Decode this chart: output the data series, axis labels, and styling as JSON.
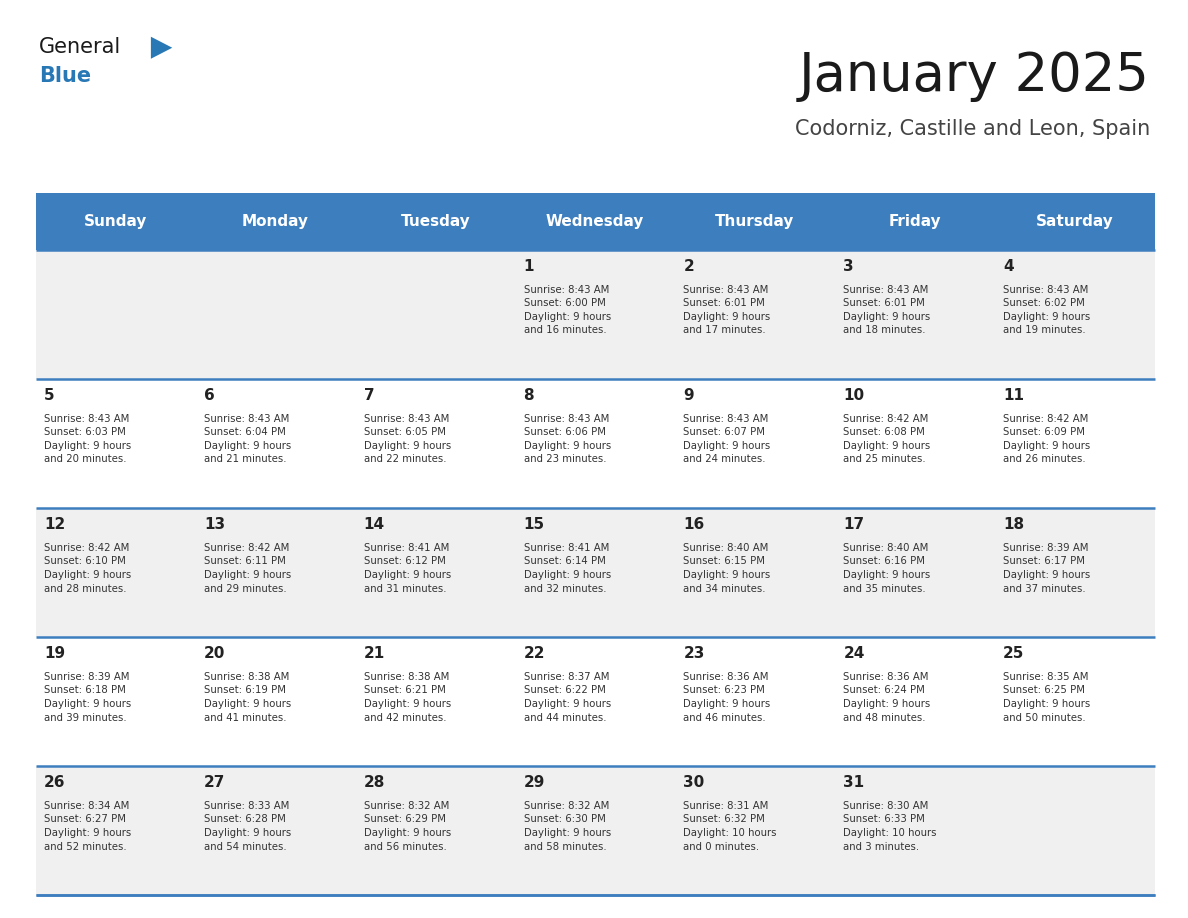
{
  "title": "January 2025",
  "subtitle": "Codorniz, Castille and Leon, Spain",
  "days_of_week": [
    "Sunday",
    "Monday",
    "Tuesday",
    "Wednesday",
    "Thursday",
    "Friday",
    "Saturday"
  ],
  "header_bg": "#3d7ebf",
  "header_text_color": "#ffffff",
  "row_bg_odd": "#f0f0f0",
  "row_bg_even": "#ffffff",
  "cell_text_color": "#333333",
  "day_num_color": "#222222",
  "border_color": "#3d7ebf",
  "title_color": "#1a1a1a",
  "subtitle_color": "#444444",
  "logo_general_color": "#1a1a1a",
  "logo_blue_color": "#2878b5",
  "calendar": [
    [
      {
        "day": null,
        "info": null
      },
      {
        "day": null,
        "info": null
      },
      {
        "day": null,
        "info": null
      },
      {
        "day": 1,
        "info": "Sunrise: 8:43 AM\nSunset: 6:00 PM\nDaylight: 9 hours\nand 16 minutes."
      },
      {
        "day": 2,
        "info": "Sunrise: 8:43 AM\nSunset: 6:01 PM\nDaylight: 9 hours\nand 17 minutes."
      },
      {
        "day": 3,
        "info": "Sunrise: 8:43 AM\nSunset: 6:01 PM\nDaylight: 9 hours\nand 18 minutes."
      },
      {
        "day": 4,
        "info": "Sunrise: 8:43 AM\nSunset: 6:02 PM\nDaylight: 9 hours\nand 19 minutes."
      }
    ],
    [
      {
        "day": 5,
        "info": "Sunrise: 8:43 AM\nSunset: 6:03 PM\nDaylight: 9 hours\nand 20 minutes."
      },
      {
        "day": 6,
        "info": "Sunrise: 8:43 AM\nSunset: 6:04 PM\nDaylight: 9 hours\nand 21 minutes."
      },
      {
        "day": 7,
        "info": "Sunrise: 8:43 AM\nSunset: 6:05 PM\nDaylight: 9 hours\nand 22 minutes."
      },
      {
        "day": 8,
        "info": "Sunrise: 8:43 AM\nSunset: 6:06 PM\nDaylight: 9 hours\nand 23 minutes."
      },
      {
        "day": 9,
        "info": "Sunrise: 8:43 AM\nSunset: 6:07 PM\nDaylight: 9 hours\nand 24 minutes."
      },
      {
        "day": 10,
        "info": "Sunrise: 8:42 AM\nSunset: 6:08 PM\nDaylight: 9 hours\nand 25 minutes."
      },
      {
        "day": 11,
        "info": "Sunrise: 8:42 AM\nSunset: 6:09 PM\nDaylight: 9 hours\nand 26 minutes."
      }
    ],
    [
      {
        "day": 12,
        "info": "Sunrise: 8:42 AM\nSunset: 6:10 PM\nDaylight: 9 hours\nand 28 minutes."
      },
      {
        "day": 13,
        "info": "Sunrise: 8:42 AM\nSunset: 6:11 PM\nDaylight: 9 hours\nand 29 minutes."
      },
      {
        "day": 14,
        "info": "Sunrise: 8:41 AM\nSunset: 6:12 PM\nDaylight: 9 hours\nand 31 minutes."
      },
      {
        "day": 15,
        "info": "Sunrise: 8:41 AM\nSunset: 6:14 PM\nDaylight: 9 hours\nand 32 minutes."
      },
      {
        "day": 16,
        "info": "Sunrise: 8:40 AM\nSunset: 6:15 PM\nDaylight: 9 hours\nand 34 minutes."
      },
      {
        "day": 17,
        "info": "Sunrise: 8:40 AM\nSunset: 6:16 PM\nDaylight: 9 hours\nand 35 minutes."
      },
      {
        "day": 18,
        "info": "Sunrise: 8:39 AM\nSunset: 6:17 PM\nDaylight: 9 hours\nand 37 minutes."
      }
    ],
    [
      {
        "day": 19,
        "info": "Sunrise: 8:39 AM\nSunset: 6:18 PM\nDaylight: 9 hours\nand 39 minutes."
      },
      {
        "day": 20,
        "info": "Sunrise: 8:38 AM\nSunset: 6:19 PM\nDaylight: 9 hours\nand 41 minutes."
      },
      {
        "day": 21,
        "info": "Sunrise: 8:38 AM\nSunset: 6:21 PM\nDaylight: 9 hours\nand 42 minutes."
      },
      {
        "day": 22,
        "info": "Sunrise: 8:37 AM\nSunset: 6:22 PM\nDaylight: 9 hours\nand 44 minutes."
      },
      {
        "day": 23,
        "info": "Sunrise: 8:36 AM\nSunset: 6:23 PM\nDaylight: 9 hours\nand 46 minutes."
      },
      {
        "day": 24,
        "info": "Sunrise: 8:36 AM\nSunset: 6:24 PM\nDaylight: 9 hours\nand 48 minutes."
      },
      {
        "day": 25,
        "info": "Sunrise: 8:35 AM\nSunset: 6:25 PM\nDaylight: 9 hours\nand 50 minutes."
      }
    ],
    [
      {
        "day": 26,
        "info": "Sunrise: 8:34 AM\nSunset: 6:27 PM\nDaylight: 9 hours\nand 52 minutes."
      },
      {
        "day": 27,
        "info": "Sunrise: 8:33 AM\nSunset: 6:28 PM\nDaylight: 9 hours\nand 54 minutes."
      },
      {
        "day": 28,
        "info": "Sunrise: 8:32 AM\nSunset: 6:29 PM\nDaylight: 9 hours\nand 56 minutes."
      },
      {
        "day": 29,
        "info": "Sunrise: 8:32 AM\nSunset: 6:30 PM\nDaylight: 9 hours\nand 58 minutes."
      },
      {
        "day": 30,
        "info": "Sunrise: 8:31 AM\nSunset: 6:32 PM\nDaylight: 10 hours\nand 0 minutes."
      },
      {
        "day": 31,
        "info": "Sunrise: 8:30 AM\nSunset: 6:33 PM\nDaylight: 10 hours\nand 3 minutes."
      },
      {
        "day": null,
        "info": null
      }
    ]
  ]
}
